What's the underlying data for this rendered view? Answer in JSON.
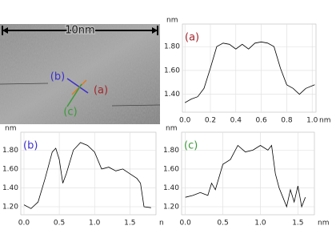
{
  "image": {
    "scale_label": "10nm",
    "labels": [
      {
        "text": "(b)",
        "color": "#3b2fd0"
      },
      {
        "text": "(a)",
        "color": "#a3262b"
      },
      {
        "text": "(c)",
        "color": "#3a9a3a"
      }
    ]
  },
  "chart_data": [
    {
      "type": "line",
      "panel_label": "(a)",
      "label_color": "#a3262b",
      "x_unit": "nm",
      "y_unit": "nm",
      "line_color": "#000000",
      "grid": true,
      "x": [
        0,
        0.05,
        0.1,
        0.15,
        0.2,
        0.25,
        0.3,
        0.35,
        0.4,
        0.45,
        0.5,
        0.55,
        0.6,
        0.65,
        0.7,
        0.75,
        0.8,
        0.85,
        0.9,
        0.95,
        1.02
      ],
      "values": [
        1.33,
        1.36,
        1.38,
        1.45,
        1.62,
        1.8,
        1.83,
        1.82,
        1.78,
        1.82,
        1.78,
        1.83,
        1.84,
        1.83,
        1.8,
        1.62,
        1.48,
        1.45,
        1.4,
        1.45,
        1.48
      ],
      "xlim": [
        -0.02,
        1.03
      ],
      "ylim": [
        1.25,
        1.99
      ],
      "xticks": [
        {
          "value": 0,
          "label": "0.0"
        },
        0.2,
        0.4,
        0.6,
        0.8,
        {
          "value": 1,
          "label": "1.0"
        }
      ],
      "yticks": [
        {
          "value": 1.4,
          "label": "1.40"
        },
        {
          "value": 1.6,
          "label": "1.60"
        },
        {
          "value": 1.8,
          "label": "1.80"
        }
      ]
    },
    {
      "type": "line",
      "panel_label": "(b)",
      "label_color": "#3b2fd0",
      "x_unit": "n",
      "y_unit": "nm",
      "line_color": "#000000",
      "grid": true,
      "x": [
        0,
        0.1,
        0.2,
        0.3,
        0.4,
        0.45,
        0.5,
        0.55,
        0.6,
        0.7,
        0.8,
        0.9,
        1.0,
        1.1,
        1.2,
        1.3,
        1.4,
        1.5,
        1.6,
        1.65,
        1.7,
        1.8
      ],
      "values": [
        1.22,
        1.18,
        1.25,
        1.5,
        1.78,
        1.82,
        1.7,
        1.45,
        1.55,
        1.8,
        1.88,
        1.85,
        1.78,
        1.6,
        1.62,
        1.58,
        1.6,
        1.55,
        1.5,
        1.45,
        1.2,
        1.19
      ],
      "xlim": [
        -0.045,
        1.87
      ],
      "ylim": [
        1.115,
        1.99
      ],
      "xticks": [
        {
          "value": 0,
          "label": "0.0"
        },
        0.5,
        {
          "value": 1,
          "label": "1.0"
        },
        1.5
      ],
      "yticks": [
        {
          "value": 1.2,
          "label": "1.20"
        },
        {
          "value": 1.4,
          "label": "1.40"
        },
        {
          "value": 1.6,
          "label": "1.60"
        },
        {
          "value": 1.8,
          "label": "1.80"
        }
      ]
    },
    {
      "type": "line",
      "panel_label": "(c)",
      "label_color": "#3a9a3a",
      "x_unit": "nm",
      "y_unit": "nm",
      "line_color": "#000000",
      "grid": true,
      "x": [
        0,
        0.1,
        0.2,
        0.3,
        0.35,
        0.4,
        0.5,
        0.6,
        0.7,
        0.8,
        0.9,
        1.0,
        1.1,
        1.15,
        1.2,
        1.25,
        1.3,
        1.35,
        1.4,
        1.45,
        1.5,
        1.55,
        1.6
      ],
      "values": [
        1.3,
        1.32,
        1.35,
        1.32,
        1.45,
        1.38,
        1.65,
        1.7,
        1.85,
        1.78,
        1.8,
        1.85,
        1.8,
        1.85,
        1.55,
        1.4,
        1.3,
        1.2,
        1.38,
        1.25,
        1.42,
        1.2,
        1.3
      ],
      "xlim": [
        -0.05,
        1.72
      ],
      "ylim": [
        1.115,
        1.99
      ],
      "xticks": [
        {
          "value": 0,
          "label": "0.0"
        },
        0.5,
        {
          "value": 1,
          "label": "1.0"
        },
        1.5
      ],
      "yticks": [
        {
          "value": 1.2,
          "label": "1.20"
        },
        {
          "value": 1.4,
          "label": "1.40"
        },
        {
          "value": 1.6,
          "label": "1.60"
        },
        {
          "value": 1.8,
          "label": "1.80"
        }
      ]
    }
  ]
}
